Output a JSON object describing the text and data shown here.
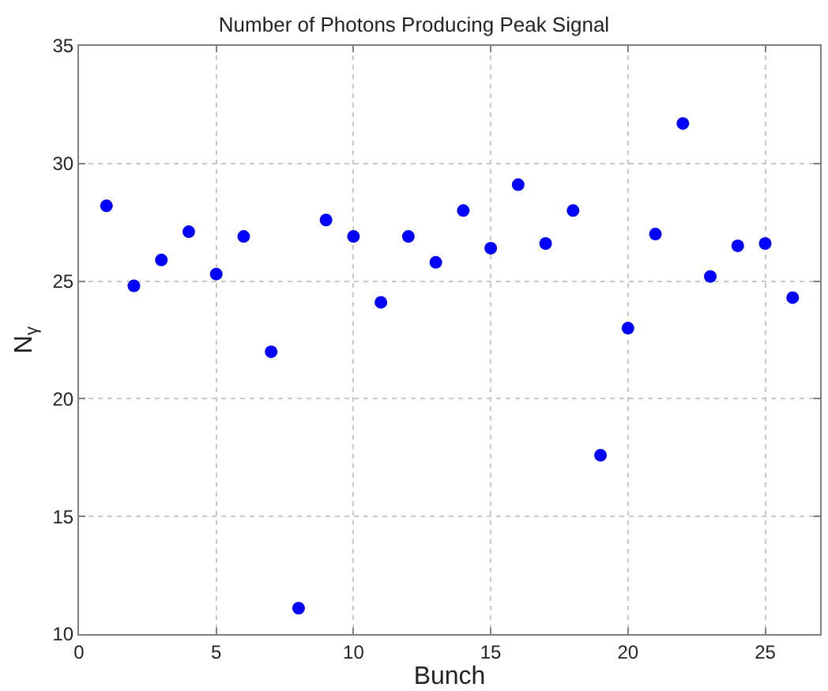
{
  "chart_data": {
    "type": "scatter",
    "title": "Number of Photons Producing Peak Signal",
    "xlabel": "Bunch",
    "ylabel": "N$_{γ}$",
    "x": [
      1,
      2,
      3,
      4,
      5,
      6,
      7,
      8,
      9,
      10,
      11,
      12,
      13,
      14,
      15,
      16,
      17,
      18,
      19,
      20,
      21,
      22,
      23,
      24,
      25,
      26
    ],
    "series": [
      {
        "color": "#0000ff",
        "values": [
          28.2,
          24.8,
          25.9,
          27.1,
          25.3,
          26.9,
          22.0,
          11.1,
          27.6,
          26.9,
          24.1,
          26.9,
          25.8,
          28.0,
          26.4,
          29.1,
          26.6,
          28.0,
          17.6,
          23.0,
          27.0,
          31.7,
          25.2,
          26.5,
          26.6,
          24.3
        ]
      }
    ],
    "xlim": [
      0,
      27
    ],
    "ylim": [
      10,
      35
    ],
    "xticks": [
      0,
      5,
      10,
      15,
      20,
      25
    ],
    "yticks": [
      10,
      15,
      20,
      25,
      30,
      35
    ],
    "grid": true,
    "marker": "circle",
    "legend": false
  }
}
